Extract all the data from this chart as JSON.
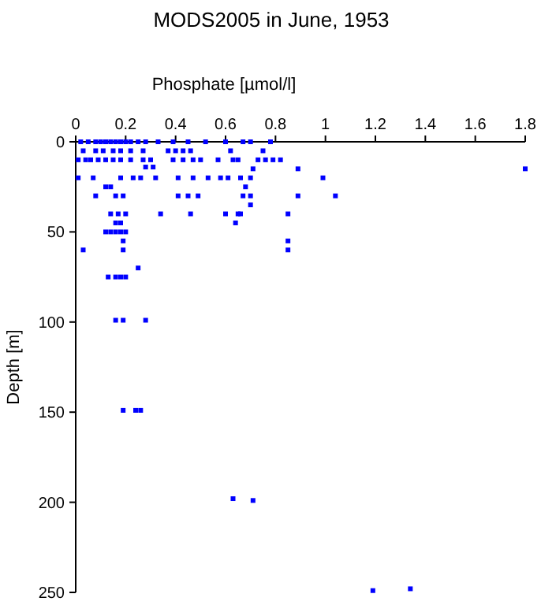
{
  "chart_data": {
    "type": "scatter",
    "title": "MODS2005 in June, 1953",
    "xlabel": "Phosphate [µmol/l]",
    "ylabel": "Depth [m]",
    "xlim": [
      0,
      1.8
    ],
    "xticks": [
      0,
      0.2,
      0.4,
      0.6,
      0.8,
      1,
      1.2,
      1.4,
      1.6,
      1.8
    ],
    "ylim": [
      250,
      0
    ],
    "yticks": [
      0,
      50,
      100,
      150,
      200,
      250
    ],
    "grid": false,
    "marker": "square",
    "series": [
      {
        "color": "#0000ff",
        "x": [
          0.02,
          0.05,
          0.08,
          0.1,
          0.12,
          0.14,
          0.16,
          0.18,
          0.2,
          0.22,
          0.25,
          0.28,
          0.33,
          0.39,
          0.45,
          0.52,
          0.6,
          0.67,
          0.7,
          0.78,
          0.03,
          0.08,
          0.11,
          0.15,
          0.18,
          0.22,
          0.27,
          0.37,
          0.4,
          0.43,
          0.46,
          0.62,
          0.75,
          0.01,
          0.04,
          0.06,
          0.09,
          0.12,
          0.15,
          0.18,
          0.22,
          0.27,
          0.3,
          0.39,
          0.43,
          0.47,
          0.5,
          0.57,
          0.63,
          0.65,
          0.73,
          0.76,
          0.79,
          0.82,
          0.28,
          0.31,
          0.71,
          0.89,
          1.8,
          0.01,
          0.07,
          0.18,
          0.23,
          0.26,
          0.32,
          0.41,
          0.47,
          0.53,
          0.58,
          0.61,
          0.66,
          0.7,
          0.99,
          0.12,
          0.14,
          0.68,
          0.08,
          0.16,
          0.19,
          0.41,
          0.45,
          0.49,
          0.67,
          0.7,
          0.89,
          1.04,
          0.7,
          0.14,
          0.17,
          0.2,
          0.34,
          0.46,
          0.6,
          0.65,
          0.66,
          0.85,
          0.16,
          0.18,
          0.64,
          0.12,
          0.14,
          0.16,
          0.18,
          0.2,
          0.19,
          0.85,
          0.03,
          0.19,
          0.85,
          0.25,
          0.13,
          0.16,
          0.18,
          0.2,
          0.16,
          0.19,
          0.28,
          0.19,
          0.24,
          0.26,
          0.63,
          0.71,
          1.19,
          1.34
        ],
        "values": [
          0,
          0,
          0,
          0,
          0,
          0,
          0,
          0,
          0,
          0,
          0,
          0,
          0,
          0,
          0,
          0,
          0,
          0,
          0,
          0,
          5,
          5,
          5,
          5,
          5,
          5,
          5,
          5,
          5,
          5,
          5,
          5,
          5,
          10,
          10,
          10,
          10,
          10,
          10,
          10,
          10,
          10,
          10,
          10,
          10,
          10,
          10,
          10,
          10,
          10,
          10,
          10,
          10,
          10,
          14,
          14,
          15,
          15,
          15,
          20,
          20,
          20,
          20,
          20,
          20,
          20,
          20,
          20,
          20,
          20,
          20,
          20,
          20,
          25,
          25,
          25,
          30,
          30,
          30,
          30,
          30,
          30,
          30,
          30,
          30,
          30,
          35,
          40,
          40,
          40,
          40,
          40,
          40,
          40,
          40,
          40,
          45,
          45,
          45,
          50,
          50,
          50,
          50,
          50,
          55,
          55,
          60,
          60,
          60,
          70,
          75,
          75,
          75,
          75,
          99,
          99,
          99,
          149,
          149,
          149,
          198,
          199,
          249,
          248
        ]
      }
    ]
  }
}
